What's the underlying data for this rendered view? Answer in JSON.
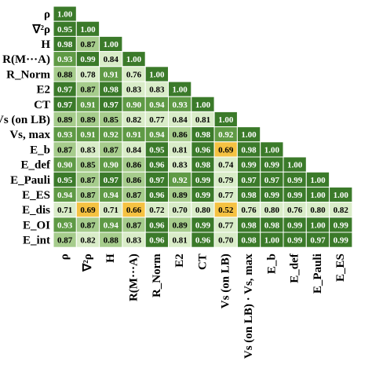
{
  "chart_data": {
    "type": "heatmap",
    "title": "",
    "xlabel": "",
    "ylabel": "",
    "row_labels": [
      "ρ",
      "∇²ρ",
      "H",
      "R(M···A)",
      "R_Norm",
      "E2",
      "CT",
      "Vs (on LB)",
      "Vs, max",
      "E_b",
      "E_def",
      "E_Pauli",
      "E_ES",
      "E_dis",
      "E_OI",
      "E_int"
    ],
    "column_labels": [
      "ρ",
      "∇²ρ",
      "H",
      "R(M···A)",
      "R_Norm",
      "E2",
      "CT",
      "Vs (on LB)",
      "Vs (on LB) · Vs, max",
      "E_b",
      "E_def",
      "E_Pauli",
      "E_ES"
    ],
    "values": [
      [
        "1.00"
      ],
      [
        "0.95",
        "1.00"
      ],
      [
        "0.98",
        "0.87",
        "1.00"
      ],
      [
        "0.93",
        "0.99",
        "0.84",
        "1.00"
      ],
      [
        "0.88",
        "0.78",
        "0.91",
        "0.76",
        "1.00"
      ],
      [
        "0.97",
        "0.87",
        "0.98",
        "0.83",
        "0.83",
        "1.00"
      ],
      [
        "0.97",
        "0.91",
        "0.97",
        "0.90",
        "0.94",
        "0.93",
        "1.00"
      ],
      [
        "0.89",
        "0.89",
        "0.85",
        "0.82",
        "0.77",
        "0.84",
        "0.81",
        "1.00"
      ],
      [
        "0.93",
        "0.91",
        "0.92",
        "0.91",
        "0.94",
        "0.86",
        "0.98",
        "0.92",
        "1.00"
      ],
      [
        "0.87",
        "0.83",
        "0.87",
        "0.84",
        "0.95",
        "0.81",
        "0.96",
        "0.69",
        "0.98",
        "1.00"
      ],
      [
        "0.90",
        "0.85",
        "0.90",
        "0.86",
        "0.96",
        "0.83",
        "0.98",
        "0.74",
        "0.99",
        "0.99",
        "1.00"
      ],
      [
        "0.95",
        "0.87",
        "0.97",
        "0.86",
        "0.97",
        "0.92",
        "0.99",
        "0.79",
        "0.97",
        "0.97",
        "0.99",
        "1.00"
      ],
      [
        "0.94",
        "0.87",
        "0.94",
        "0.87",
        "0.96",
        "0.89",
        "0.99",
        "0.77",
        "0.98",
        "0.99",
        "0.99",
        "1.00",
        "1.00"
      ],
      [
        "0.71",
        "0.69",
        "0.71",
        "0.66",
        "0.72",
        "0.70",
        "0.80",
        "0.52",
        "0.76",
        "0.80",
        "0.76",
        "0.80",
        "0.82"
      ],
      [
        "0.93",
        "0.87",
        "0.94",
        "0.87",
        "0.96",
        "0.89",
        "0.99",
        "0.77",
        "0.98",
        "0.98",
        "0.99",
        "1.00",
        "0.99"
      ],
      [
        "0.87",
        "0.82",
        "0.88",
        "0.83",
        "0.96",
        "0.81",
        "0.96",
        "0.70",
        "0.98",
        "1.00",
        "0.99",
        "0.97",
        "0.99"
      ]
    ],
    "color_scale": {
      "high": "#3b7a2a",
      "mid": "#a6cc8c",
      "low": "#d9ecc8",
      "highlight": "#f5c242"
    }
  }
}
